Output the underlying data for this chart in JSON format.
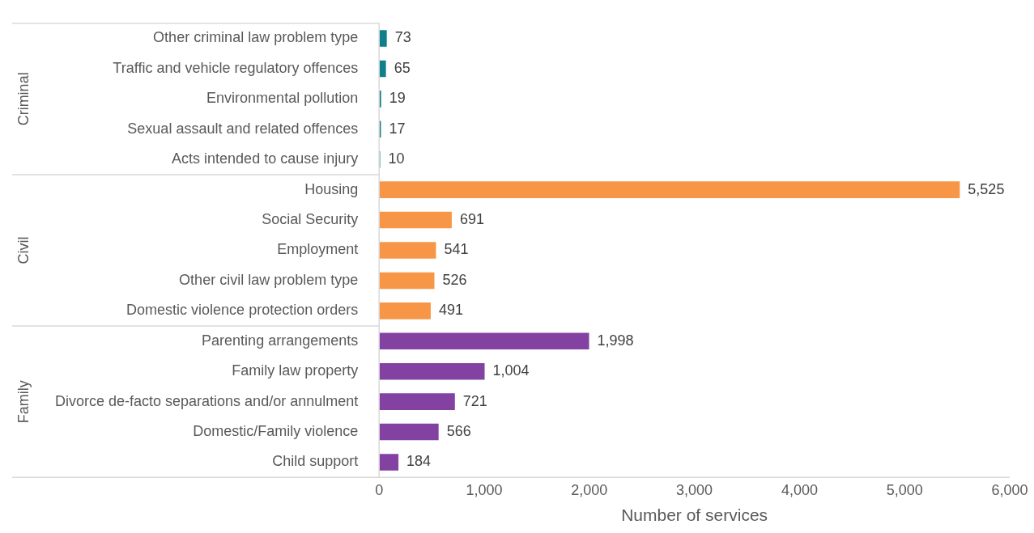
{
  "chart_data": {
    "type": "bar",
    "orientation": "horizontal",
    "xlabel": "Number of services",
    "categories": [
      "Other criminal law problem type",
      "Traffic and vehicle regulatory offences",
      "Environmental pollution",
      "Sexual assault and related offences",
      "Acts intended to cause injury",
      "Housing",
      "Social Security",
      "Employment",
      "Other civil law problem type",
      "Domestic violence protection orders",
      "Parenting arrangements",
      "Family law property",
      "Divorce de-facto separations and/or annulment",
      "Domestic/Family violence",
      "Child support"
    ],
    "values": [
      73,
      65,
      19,
      17,
      10,
      5525,
      691,
      541,
      526,
      491,
      1998,
      1004,
      721,
      566,
      184
    ],
    "value_labels": [
      "73",
      "65",
      "19",
      "17",
      "10",
      "5,525",
      "691",
      "541",
      "526",
      "491",
      "1,998",
      "1,004",
      "721",
      "566",
      "184"
    ],
    "colors": [
      "#0f7f8b",
      "#0f7f8b",
      "#0f7f8b",
      "#0f7f8b",
      "#0f7f8b",
      "#f79646",
      "#f79646",
      "#f79646",
      "#f79646",
      "#f79646",
      "#8341a1",
      "#8341a1",
      "#8341a1",
      "#8341a1",
      "#8341a1"
    ],
    "annotations": [
      "Criminal",
      "Civil",
      "Family"
    ],
    "xlim": [
      0,
      6000
    ],
    "xticks": [
      0,
      {
        "value": 1000,
        "label": "1,000"
      },
      {
        "value": 2000,
        "label": "2,000"
      },
      {
        "value": 3000,
        "label": "3,000"
      },
      {
        "value": 4000,
        "label": "4,000"
      },
      {
        "value": 5000,
        "label": "5,000"
      },
      {
        "value": 6000,
        "label": "6,000"
      }
    ],
    "grid": false,
    "legend": false
  }
}
